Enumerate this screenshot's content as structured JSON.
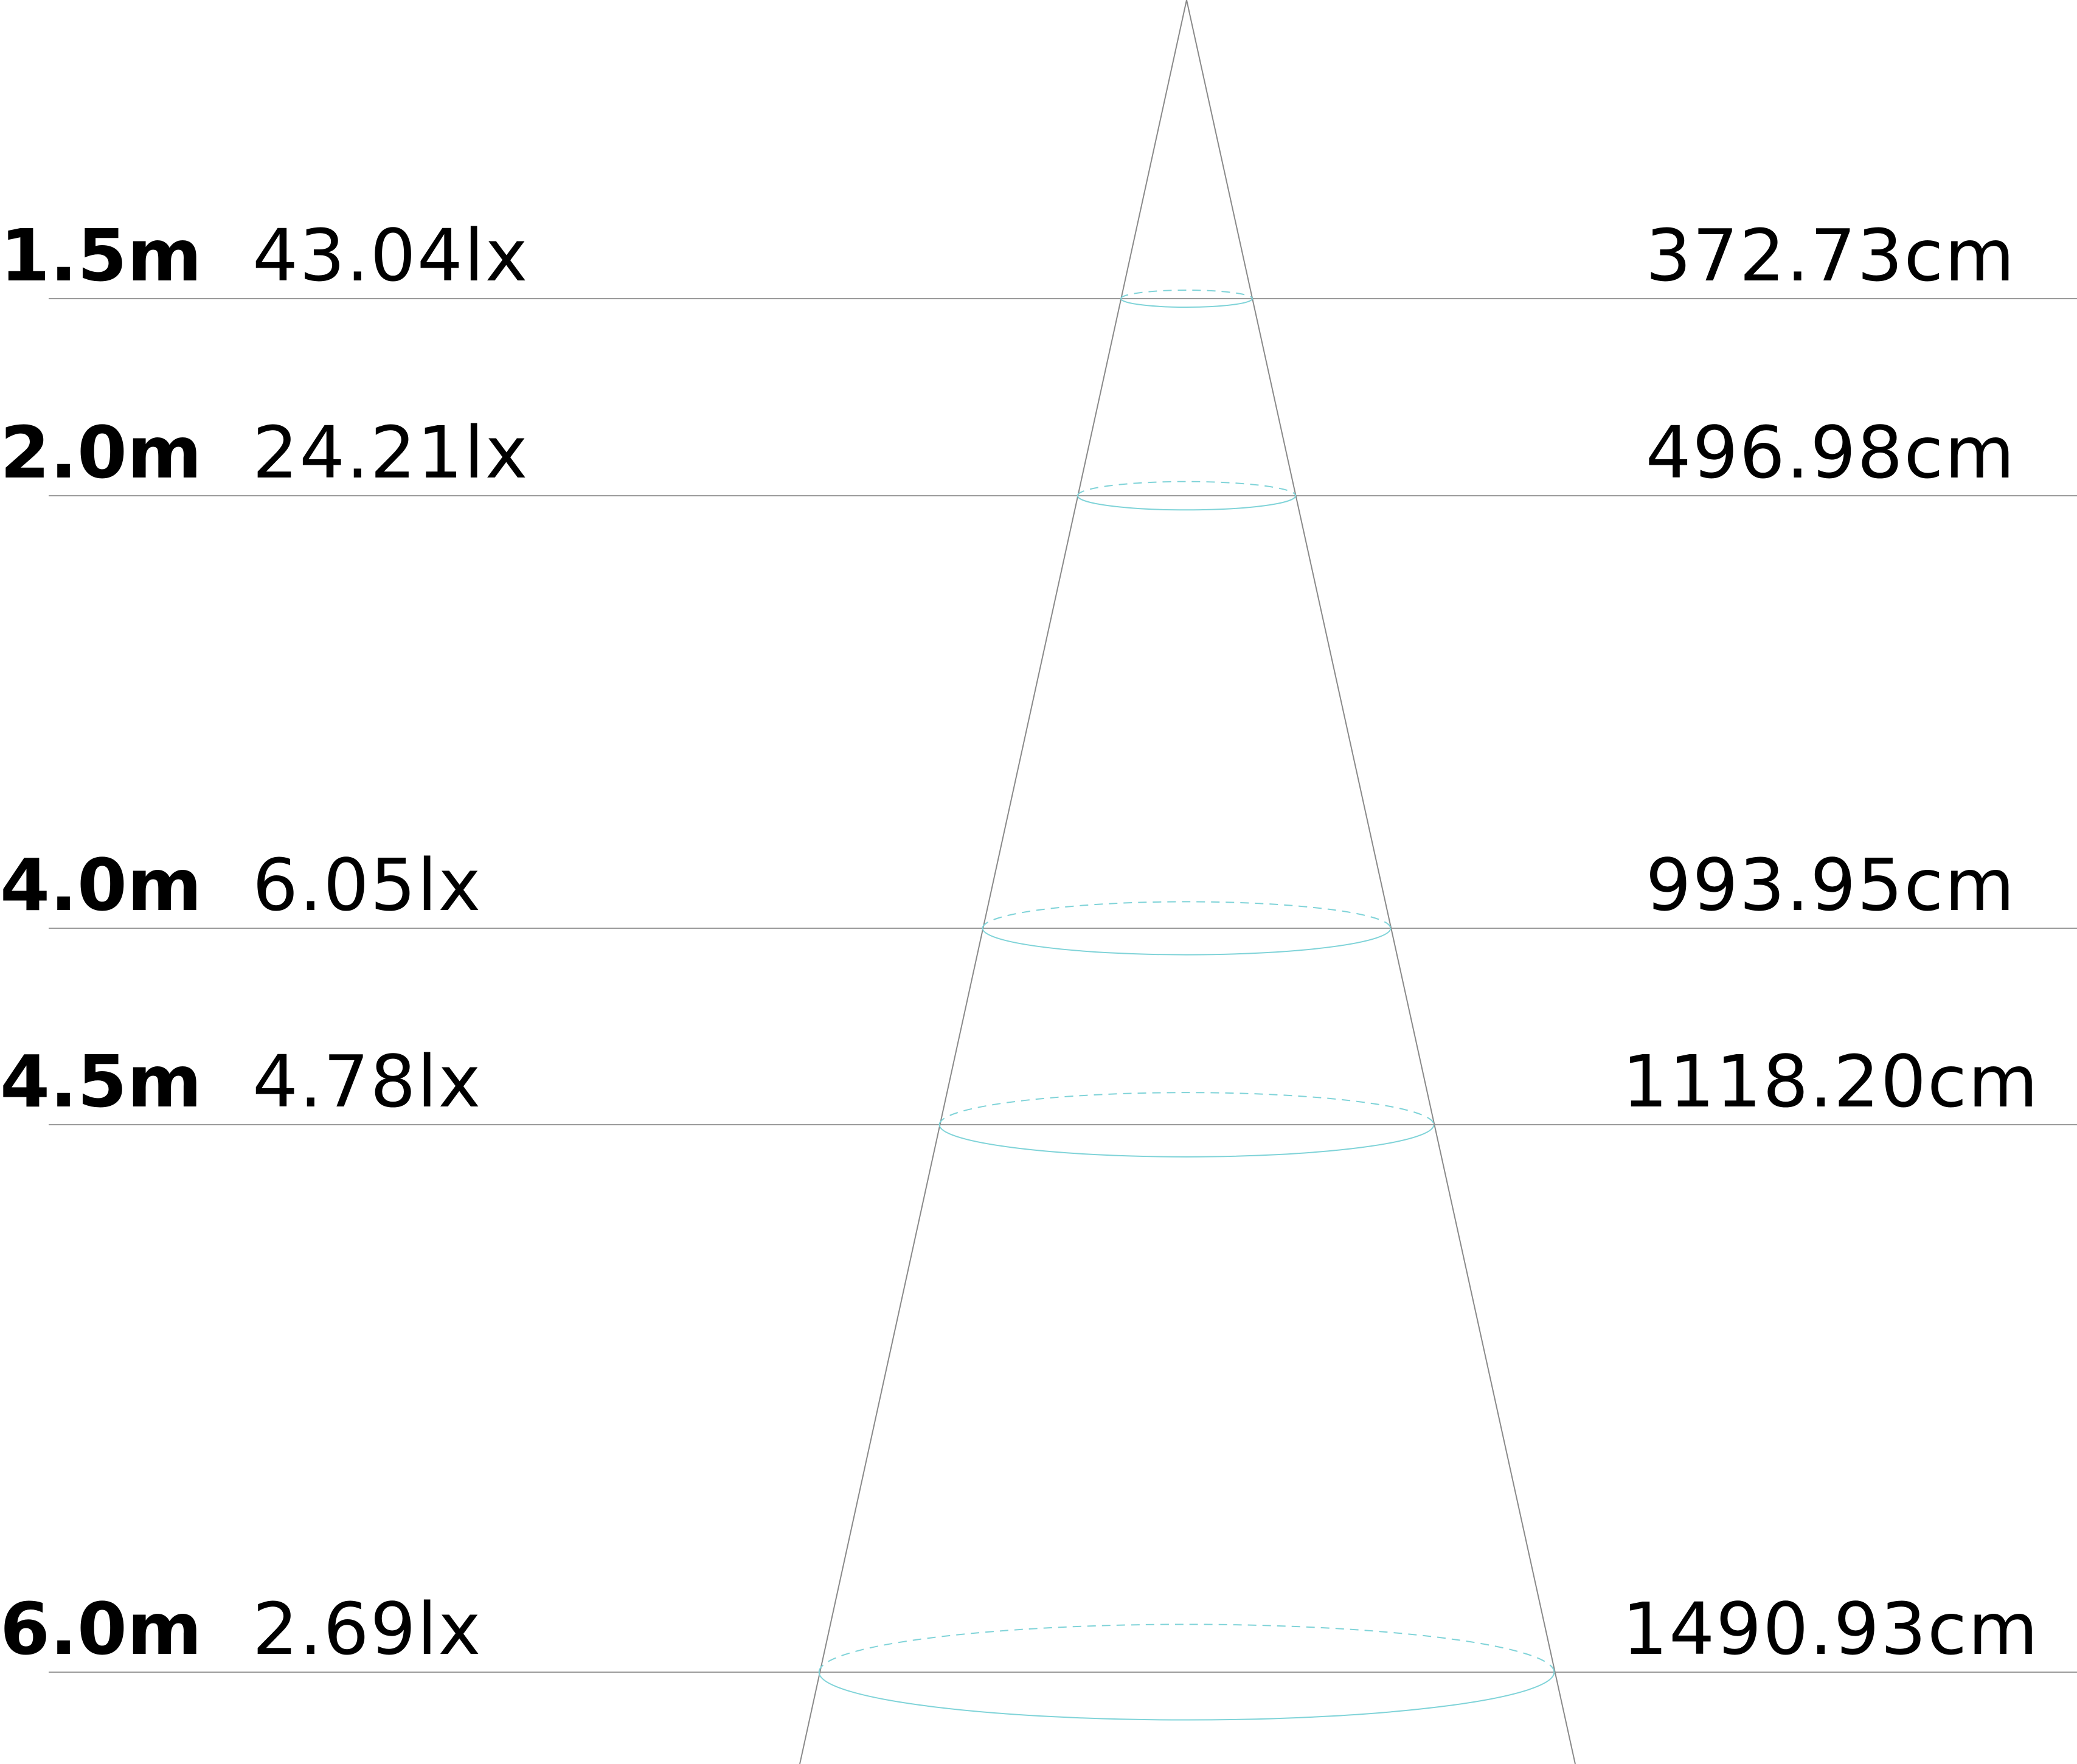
{
  "colors": {
    "background": "#ffffff",
    "text": "#000000",
    "guide_line": "#9a9a9a",
    "cone_line": "#8a8a8a",
    "beam_ellipse": "#7fd3d8"
  },
  "levels": [
    {
      "distance": "1.5m",
      "illuminance": "43.04lx",
      "diameter": "372.73cm",
      "distance_m": 1.5,
      "diameter_cm": 372.73
    },
    {
      "distance": "2.0m",
      "illuminance": "24.21lx",
      "diameter": "496.98cm",
      "distance_m": 2.0,
      "diameter_cm": 496.98
    },
    {
      "distance": "4.0m",
      "illuminance": "6.05lx",
      "diameter": "993.95cm",
      "distance_m": 4.0,
      "diameter_cm": 993.95
    },
    {
      "distance": "4.5m",
      "illuminance": "4.78lx",
      "diameter": "1118.20cm",
      "distance_m": 4.5,
      "diameter_cm": 1118.2
    },
    {
      "distance": "6.0m",
      "illuminance": "2.69lx",
      "diameter": "1490.93cm",
      "distance_m": 6.0,
      "diameter_cm": 1490.93
    }
  ]
}
